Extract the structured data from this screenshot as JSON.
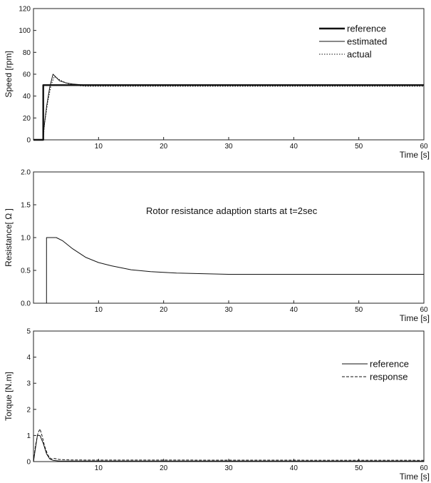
{
  "chart_data": [
    {
      "type": "line",
      "xlabel": "Time [s]",
      "ylabel": "Speed [rpm]",
      "xlim": [
        0,
        60
      ],
      "ylim": [
        0,
        120
      ],
      "xticks": [
        10,
        20,
        30,
        40,
        50,
        60
      ],
      "yticks": [
        0,
        20,
        40,
        60,
        80,
        100,
        120
      ],
      "legend": "top-right",
      "series": [
        {
          "name": "reference",
          "style": "thick",
          "x": [
            0,
            1.5,
            1.5,
            60
          ],
          "y": [
            0,
            0,
            50,
            50
          ]
        },
        {
          "name": "estimated",
          "style": "thin",
          "x": [
            0,
            1.5,
            1.6,
            2,
            2.5,
            3,
            3.5,
            4,
            5,
            6,
            8,
            10,
            60
          ],
          "y": [
            0,
            0,
            10,
            30,
            48,
            60,
            57,
            54,
            52,
            51,
            50,
            50,
            50
          ]
        },
        {
          "name": "actual",
          "style": "dotted",
          "x": [
            0,
            1.5,
            1.7,
            2.2,
            2.7,
            3.2,
            4,
            5,
            6,
            8,
            10,
            60
          ],
          "y": [
            0,
            0,
            15,
            35,
            50,
            58,
            55,
            52,
            50,
            49,
            49,
            49
          ]
        }
      ]
    },
    {
      "type": "line",
      "xlabel": "Time [s]",
      "ylabel": "Resistance[ Ω ]",
      "xlim": [
        0,
        60
      ],
      "ylim": [
        0,
        2.0
      ],
      "xticks": [
        10,
        20,
        30,
        40,
        50,
        60
      ],
      "yticks": [
        0.0,
        0.5,
        1.0,
        1.5,
        2.0
      ],
      "annotation": "Rotor resistance adaption starts at t=2sec",
      "series": [
        {
          "style": "thin",
          "x": [
            2,
            2,
            3.5,
            4.5,
            6,
            8,
            10,
            12,
            15,
            18,
            22,
            26,
            30,
            40,
            50,
            60
          ],
          "y": [
            0,
            1.0,
            1.0,
            0.95,
            0.83,
            0.7,
            0.62,
            0.57,
            0.51,
            0.48,
            0.46,
            0.45,
            0.44,
            0.44,
            0.44,
            0.44
          ]
        }
      ]
    },
    {
      "type": "line",
      "xlabel": "Time [s]",
      "ylabel": "Torque [N.m]",
      "xlim": [
        0,
        60
      ],
      "ylim": [
        0,
        5
      ],
      "xticks": [
        10,
        20,
        30,
        40,
        50,
        60
      ],
      "yticks": [
        0,
        1,
        2,
        3,
        4,
        5
      ],
      "legend": "top-right",
      "series": [
        {
          "name": "reference",
          "style": "thin",
          "x": [
            0,
            0.3,
            0.6,
            1.0,
            1.5,
            2.0,
            2.5,
            3,
            4,
            60
          ],
          "y": [
            0,
            0.5,
            1.0,
            1.0,
            0.7,
            0.3,
            0.1,
            0.05,
            0.02,
            0.02
          ]
        },
        {
          "name": "response",
          "style": "dashed",
          "x": [
            0,
            0.3,
            0.7,
            1.0,
            1.3,
            1.7,
            2.2,
            2.7,
            3.2,
            4,
            6,
            60
          ],
          "y": [
            0,
            0.6,
            1.1,
            1.25,
            1.0,
            0.6,
            0.25,
            0.1,
            0.12,
            0.08,
            0.06,
            0.05
          ]
        }
      ]
    }
  ]
}
